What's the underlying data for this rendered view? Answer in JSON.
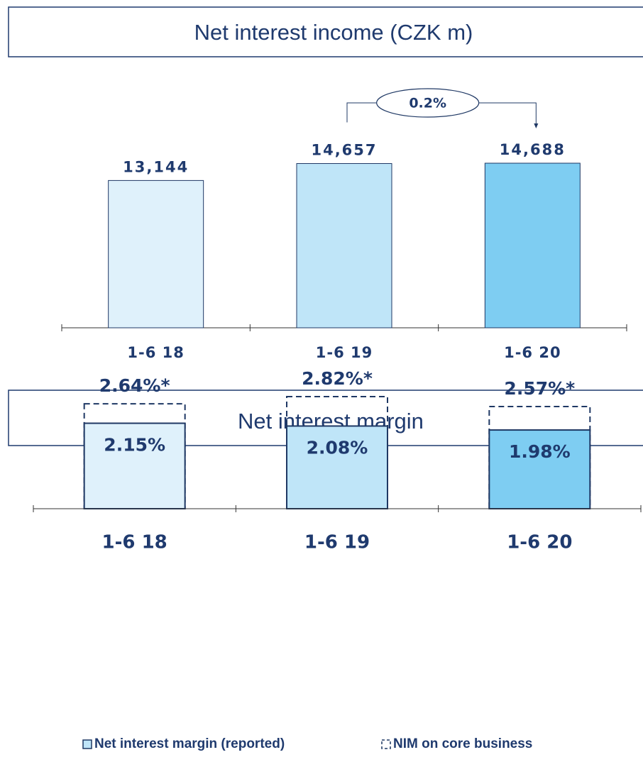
{
  "chart_data": [
    {
      "type": "bar",
      "title": "Net interest income (CZK m)",
      "categories": [
        "1-6 18",
        "1-6 19",
        "1-6 20"
      ],
      "values": [
        13144,
        14657,
        14688
      ],
      "value_labels": [
        "13,144",
        "14,657",
        "14,688"
      ],
      "colors": [
        "#dff1fb",
        "#bfe5f8",
        "#7ecdf2"
      ],
      "annotation": "0.2%"
    },
    {
      "type": "overlay",
      "title": "Net interest margin",
      "categories": [
        "1-6 18",
        "1-6 19",
        "1-6 20"
      ],
      "series": [
        {
          "name": "Net interest margin (reported)",
          "colors": [
            "#dff1fb",
            "#bfe5f8",
            "#7ecdf2"
          ],
          "values": [
            2.15,
            2.08,
            1.98
          ],
          "value_labels": [
            "2.15%",
            "2.08%",
            "1.98%"
          ]
        },
        {
          "name": "NIM on core business",
          "color": "#1f3864",
          "dashed": true,
          "values": [
            2.64,
            2.82,
            2.57
          ],
          "value_labels": [
            "2.64%*",
            "2.82%*",
            "2.57%*"
          ]
        }
      ]
    }
  ]
}
